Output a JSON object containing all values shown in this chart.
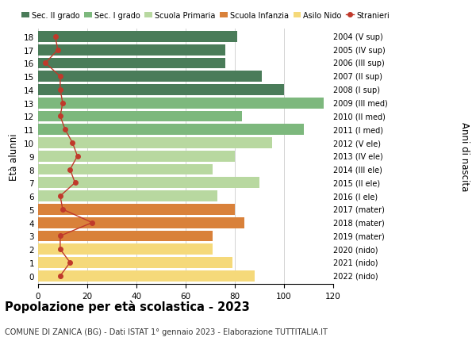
{
  "ages": [
    18,
    17,
    16,
    15,
    14,
    13,
    12,
    11,
    10,
    9,
    8,
    7,
    6,
    5,
    4,
    3,
    2,
    1,
    0
  ],
  "right_labels": [
    "2004 (V sup)",
    "2005 (IV sup)",
    "2006 (III sup)",
    "2007 (II sup)",
    "2008 (I sup)",
    "2009 (III med)",
    "2010 (II med)",
    "2011 (I med)",
    "2012 (V ele)",
    "2013 (IV ele)",
    "2014 (III ele)",
    "2015 (II ele)",
    "2016 (I ele)",
    "2017 (mater)",
    "2018 (mater)",
    "2019 (mater)",
    "2020 (nido)",
    "2021 (nido)",
    "2022 (nido)"
  ],
  "bar_values": [
    81,
    76,
    76,
    91,
    100,
    116,
    83,
    108,
    95,
    80,
    71,
    90,
    73,
    80,
    84,
    71,
    71,
    79,
    88
  ],
  "bar_colors": [
    "#4a7c59",
    "#4a7c59",
    "#4a7c59",
    "#4a7c59",
    "#4a7c59",
    "#7db87d",
    "#7db87d",
    "#7db87d",
    "#b8d8a0",
    "#b8d8a0",
    "#b8d8a0",
    "#b8d8a0",
    "#b8d8a0",
    "#d9813a",
    "#d9813a",
    "#d9813a",
    "#f5d97a",
    "#f5d97a",
    "#f5d97a"
  ],
  "stranieri_values": [
    7,
    8,
    3,
    9,
    9,
    10,
    9,
    11,
    14,
    16,
    13,
    15,
    9,
    10,
    22,
    9,
    9,
    13,
    9
  ],
  "legend_labels": [
    "Sec. II grado",
    "Sec. I grado",
    "Scuola Primaria",
    "Scuola Infanzia",
    "Asilo Nido",
    "Stranieri"
  ],
  "legend_colors": [
    "#4a7c59",
    "#7db87d",
    "#b8d8a0",
    "#d9813a",
    "#f5d97a",
    "#c0392b"
  ],
  "ylabel_left": "Età alunni",
  "ylabel_right": "Anni di nascita",
  "title": "Popolazione per età scolastica - 2023",
  "subtitle": "COMUNE DI ZANICA (BG) - Dati ISTAT 1° gennaio 2023 - Elaborazione TUTTITALIA.IT",
  "xlim": [
    0,
    120
  ],
  "xticks": [
    0,
    20,
    40,
    60,
    80,
    100,
    120
  ],
  "bar_height": 0.82,
  "stranieri_color": "#c0392b",
  "grid_color": "#cccccc"
}
